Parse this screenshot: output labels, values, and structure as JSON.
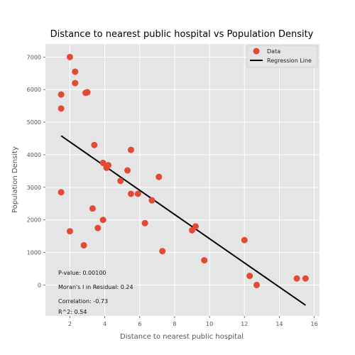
{
  "chart_data": {
    "type": "scatter",
    "title": "Distance to nearest public hospital vs Population Density",
    "xlabel": "Distance to nearest public hospital",
    "ylabel": "Population Density",
    "xlim": [
      0.6,
      16.3
    ],
    "ylim": [
      -950,
      7400
    ],
    "xticks": [
      2,
      4,
      6,
      8,
      10,
      12,
      14,
      16
    ],
    "yticks": [
      0,
      1000,
      2000,
      3000,
      4000,
      5000,
      6000,
      7000
    ],
    "grid": true,
    "legend_position": "top-right",
    "series": [
      {
        "name": "Data",
        "type": "scatter",
        "color": "#E24A33",
        "points": [
          {
            "x": 2.0,
            "y": 7000
          },
          {
            "x": 2.3,
            "y": 6550
          },
          {
            "x": 2.3,
            "y": 6200
          },
          {
            "x": 2.9,
            "y": 5900
          },
          {
            "x": 3.0,
            "y": 5920
          },
          {
            "x": 1.5,
            "y": 5850
          },
          {
            "x": 1.5,
            "y": 5420
          },
          {
            "x": 3.4,
            "y": 4300
          },
          {
            "x": 5.5,
            "y": 4150
          },
          {
            "x": 3.9,
            "y": 3750
          },
          {
            "x": 4.2,
            "y": 3680
          },
          {
            "x": 4.1,
            "y": 3600
          },
          {
            "x": 5.3,
            "y": 3520
          },
          {
            "x": 7.1,
            "y": 3320
          },
          {
            "x": 4.9,
            "y": 3200
          },
          {
            "x": 1.5,
            "y": 2850
          },
          {
            "x": 5.5,
            "y": 2800
          },
          {
            "x": 5.9,
            "y": 2800
          },
          {
            "x": 6.7,
            "y": 2600
          },
          {
            "x": 3.3,
            "y": 2350
          },
          {
            "x": 3.9,
            "y": 2000
          },
          {
            "x": 6.3,
            "y": 1900
          },
          {
            "x": 9.2,
            "y": 1800
          },
          {
            "x": 3.6,
            "y": 1750
          },
          {
            "x": 9.0,
            "y": 1680
          },
          {
            "x": 2.0,
            "y": 1650
          },
          {
            "x": 12.0,
            "y": 1380
          },
          {
            "x": 2.8,
            "y": 1220
          },
          {
            "x": 7.3,
            "y": 1040
          },
          {
            "x": 9.7,
            "y": 760
          },
          {
            "x": 12.3,
            "y": 280
          },
          {
            "x": 15.0,
            "y": 200
          },
          {
            "x": 15.5,
            "y": 200
          },
          {
            "x": 12.7,
            "y": 0
          }
        ]
      },
      {
        "name": "Regression Line",
        "type": "line",
        "color": "#000000",
        "points": [
          {
            "x": 1.5,
            "y": 4580
          },
          {
            "x": 15.5,
            "y": -620
          }
        ]
      }
    ],
    "annotations": [
      "P-value: 0.00100",
      "Moran's I in Residual: 0.24",
      "Correlation: -0.73",
      "R^2: 0.54"
    ]
  }
}
